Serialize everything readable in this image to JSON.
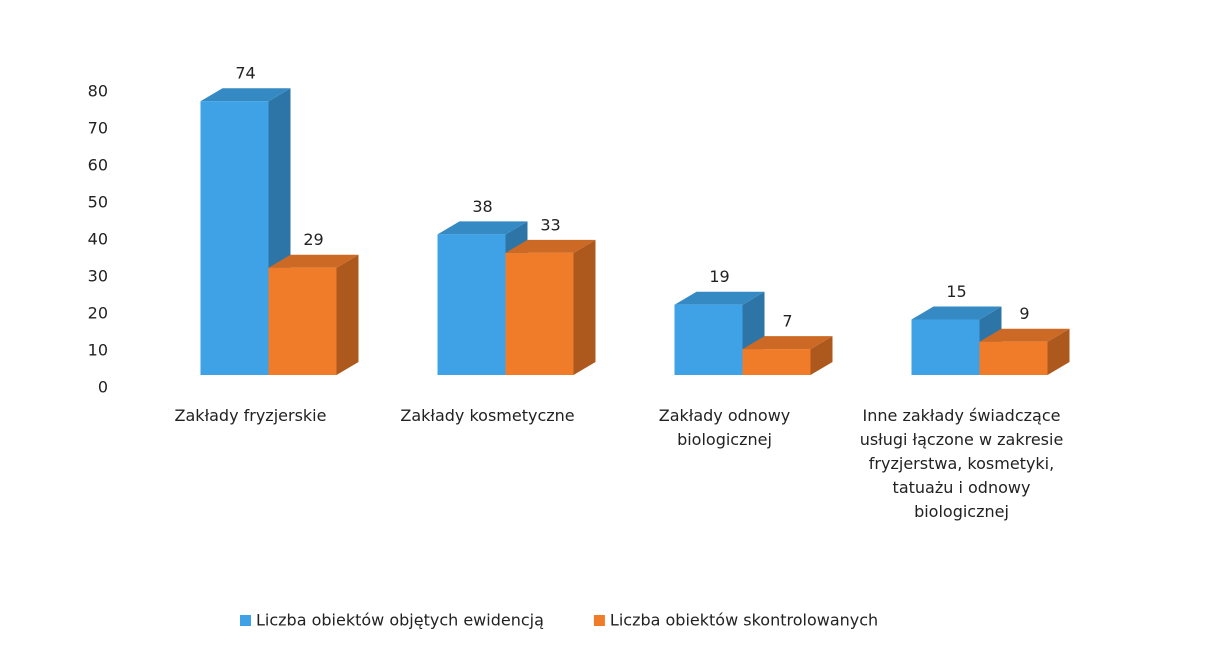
{
  "chart_data": {
    "type": "bar3d",
    "categories": [
      "Zakłady fryzjerskie",
      "Zakłady kosmetyczne",
      "Zakłady odnowy biologicznej",
      "Inne zakłady świadczące usługi łączone w zakresie fryzjerstwa, kosmetyki, tatuażu i odnowy biologicznej"
    ],
    "series": [
      {
        "name": "Liczba obiektów objętych ewidencją",
        "color": "#3fa2e6",
        "values": [
          74,
          38,
          19,
          15
        ]
      },
      {
        "name": "Liczba obiektów skontrolowanych",
        "color": "#f07c2a",
        "values": [
          29,
          33,
          7,
          9
        ]
      }
    ],
    "ylim": [
      0,
      80
    ],
    "yticks": [
      0,
      10,
      20,
      30,
      40,
      50,
      60,
      70,
      80
    ],
    "legend": "bottom"
  }
}
